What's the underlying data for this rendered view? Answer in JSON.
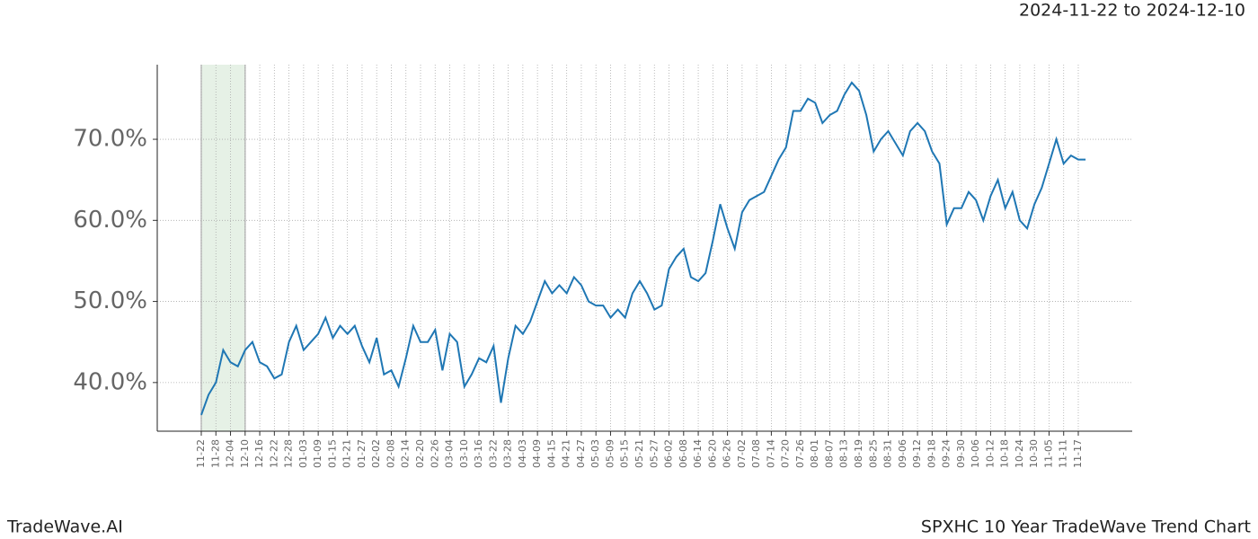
{
  "chart_data": {
    "type": "line",
    "title": "SPXHC 10 Year TradeWave Trend Chart",
    "subtitle": "2024-11-22 to 2024-12-10",
    "brand": "TradeWave.AI",
    "color": "#1f77b4",
    "highlight_color": "#e6f1e6",
    "grid": true,
    "x": [
      "11-22",
      "11-25",
      "11-28",
      "12-01",
      "12-04",
      "12-07",
      "12-10",
      "12-13",
      "12-16",
      "12-19",
      "12-22",
      "12-25",
      "12-28",
      "12-31",
      "01-03",
      "01-06",
      "01-09",
      "01-12",
      "01-15",
      "01-18",
      "01-21",
      "01-24",
      "01-27",
      "01-30",
      "02-02",
      "02-05",
      "02-08",
      "02-11",
      "02-14",
      "02-17",
      "02-20",
      "02-23",
      "02-26",
      "03-01",
      "03-04",
      "03-07",
      "03-10",
      "03-13",
      "03-16",
      "03-19",
      "03-22",
      "03-25",
      "03-28",
      "03-31",
      "04-03",
      "04-06",
      "04-09",
      "04-12",
      "04-15",
      "04-18",
      "04-21",
      "04-24",
      "04-27",
      "04-30",
      "05-03",
      "05-06",
      "05-09",
      "05-12",
      "05-15",
      "05-18",
      "05-21",
      "05-24",
      "05-27",
      "05-30",
      "06-02",
      "06-05",
      "06-08",
      "06-11",
      "06-14",
      "06-17",
      "06-20",
      "06-23",
      "06-26",
      "06-29",
      "07-02",
      "07-05",
      "07-08",
      "07-11",
      "07-14",
      "07-17",
      "07-20",
      "07-23",
      "07-26",
      "07-29",
      "08-01",
      "08-04",
      "08-07",
      "08-10",
      "08-13",
      "08-16",
      "08-19",
      "08-22",
      "08-25",
      "08-28",
      "08-31",
      "09-03",
      "09-06",
      "09-09",
      "09-12",
      "09-15",
      "09-18",
      "09-21",
      "09-24",
      "09-27",
      "09-30",
      "10-03",
      "10-06",
      "10-09",
      "10-12",
      "10-15",
      "10-18",
      "10-21",
      "10-24",
      "10-27",
      "10-30",
      "11-02",
      "11-05",
      "11-08",
      "11-11",
      "11-14",
      "11-17",
      "11-20"
    ],
    "values": [
      36,
      38.5,
      40,
      44,
      42.5,
      42,
      44,
      45,
      42.5,
      42,
      40.5,
      41,
      45,
      47,
      44,
      45,
      46,
      48,
      45.5,
      47,
      46,
      47,
      44.5,
      42.5,
      45.5,
      41,
      41.5,
      39.5,
      43,
      47,
      45,
      45,
      46.5,
      41.5,
      46,
      45,
      39.5,
      41,
      43,
      42.5,
      44.5,
      37.5,
      43,
      47,
      46,
      47.5,
      50,
      52.5,
      51,
      52,
      51,
      53,
      52,
      50,
      49.5,
      49.5,
      48,
      49,
      48,
      51,
      52.5,
      51,
      49,
      49.5,
      54,
      55.5,
      56.5,
      53,
      52.5,
      53.5,
      57.5,
      62,
      59,
      56.5,
      61,
      62.5,
      63,
      63.5,
      65.5,
      67.5,
      69,
      73.5,
      73.5,
      75,
      74.5,
      72,
      73,
      73.5,
      75.5,
      77,
      76,
      73,
      68.5,
      70,
      71,
      69.5,
      68,
      71,
      72,
      71,
      68.5,
      67,
      59.5,
      61.5,
      61.5,
      63.5,
      62.5,
      60,
      63,
      65,
      61.5,
      63.5,
      60,
      59,
      62,
      64,
      67,
      70,
      67,
      68,
      67.5,
      67.5
    ],
    "xticks": [
      "11-22",
      "11-28",
      "12-04",
      "12-10",
      "12-16",
      "12-22",
      "12-28",
      "01-03",
      "01-09",
      "01-15",
      "01-21",
      "01-27",
      "02-02",
      "02-08",
      "02-14",
      "02-20",
      "02-26",
      "03-04",
      "03-10",
      "03-16",
      "03-22",
      "03-28",
      "04-03",
      "04-09",
      "04-15",
      "04-21",
      "04-27",
      "05-03",
      "05-09",
      "05-15",
      "05-21",
      "05-27",
      "06-02",
      "06-08",
      "06-14",
      "06-20",
      "06-26",
      "07-02",
      "07-08",
      "07-14",
      "07-20",
      "07-26",
      "08-01",
      "08-07",
      "08-13",
      "08-19",
      "08-25",
      "08-31",
      "09-06",
      "09-12",
      "09-18",
      "09-24",
      "09-30",
      "10-06",
      "10-12",
      "10-18",
      "10-24",
      "10-30",
      "11-05",
      "11-11",
      "11-17"
    ],
    "highlight_ticks": [
      0,
      3
    ],
    "ylim": [
      34,
      79.2
    ],
    "yticks": [
      {
        "value": 40,
        "label": "40.0%"
      },
      {
        "value": 50,
        "label": "50.0%"
      },
      {
        "value": 60,
        "label": "60.0%"
      },
      {
        "value": 70,
        "label": "70.0%"
      }
    ]
  }
}
